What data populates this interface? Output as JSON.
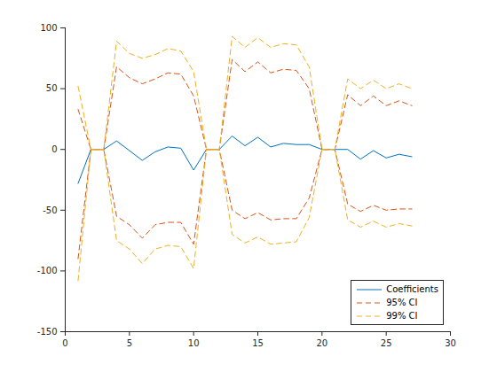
{
  "chart_data": {
    "type": "line",
    "x": [
      1,
      2,
      3,
      4,
      5,
      6,
      7,
      8,
      9,
      10,
      11,
      12,
      13,
      14,
      15,
      16,
      17,
      18,
      19,
      20,
      21,
      22,
      23,
      24,
      25,
      26,
      27
    ],
    "xlim": [
      0,
      30
    ],
    "xticks": [
      0,
      5,
      10,
      15,
      20,
      25,
      30
    ],
    "ylim": [
      -150,
      100
    ],
    "yticks": [
      -150,
      -100,
      -50,
      0,
      50,
      100
    ],
    "grid": false,
    "legend": "southeast",
    "series": [
      {
        "name": "Coefficients",
        "color": "#0072bd",
        "line_style": "solid",
        "values": [
          -28,
          0,
          0,
          7,
          -1,
          -9,
          -2,
          2,
          1,
          -17,
          0,
          0,
          11,
          3,
          10,
          2,
          5,
          4,
          4,
          0,
          0,
          0,
          -8,
          -1,
          -7,
          -4,
          -6
        ]
      },
      {
        "name": "95% CI",
        "color": "#d95319",
        "line_style": "dashed",
        "upper": [
          33,
          0,
          0,
          68,
          59,
          54,
          58,
          63,
          62,
          44,
          0,
          0,
          74,
          64,
          72,
          63,
          66,
          65,
          50,
          0,
          0,
          45,
          36,
          44,
          36,
          40,
          36
        ],
        "lower": [
          -90,
          0,
          0,
          -55,
          -62,
          -73,
          -62,
          -60,
          -60,
          -78,
          0,
          0,
          -50,
          -57,
          -52,
          -58,
          -57,
          -57,
          -40,
          0,
          0,
          -45,
          -51,
          -46,
          -50,
          -49,
          -49
        ]
      },
      {
        "name": "99% CI",
        "color": "#edb120",
        "line_style": "dashed",
        "upper": [
          52,
          0,
          0,
          89,
          79,
          75,
          78,
          83,
          81,
          64,
          0,
          0,
          93,
          84,
          92,
          84,
          87,
          86,
          68,
          0,
          0,
          58,
          50,
          57,
          50,
          54,
          50
        ],
        "lower": [
          -108,
          0,
          0,
          -75,
          -82,
          -94,
          -82,
          -79,
          -80,
          -98,
          0,
          0,
          -70,
          -77,
          -72,
          -78,
          -77,
          -76,
          -56,
          0,
          0,
          -58,
          -64,
          -59,
          -64,
          -61,
          -63
        ]
      }
    ]
  }
}
